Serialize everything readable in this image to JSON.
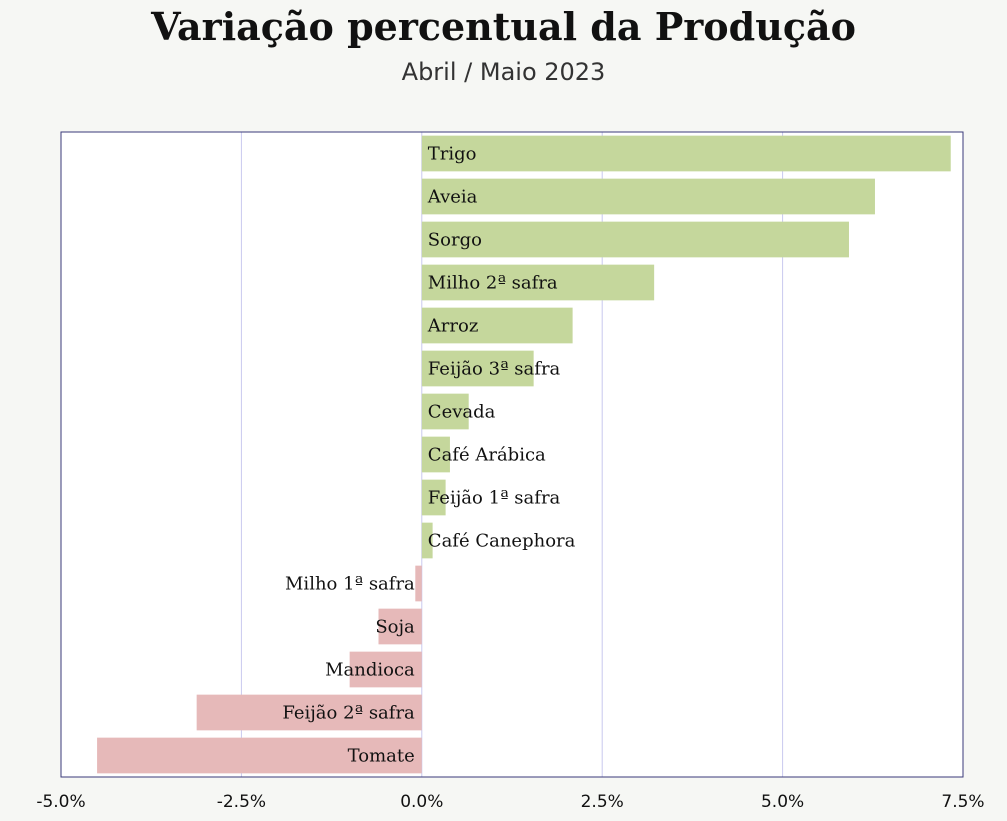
{
  "chart_data": {
    "type": "bar",
    "orientation": "horizontal",
    "title": "Variação percentual da Produção",
    "subtitle": "Abril / Maio 2023",
    "xlabel": "",
    "ylabel": "",
    "xlim": [
      -5.0,
      7.5
    ],
    "x_ticks": [
      "-5.0%",
      "-2.5%",
      "0.0%",
      "2.5%",
      "5.0%",
      "7.5%"
    ],
    "x_tick_values": [
      -5.0,
      -2.5,
      0.0,
      2.5,
      5.0,
      7.5
    ],
    "grid": "vertical",
    "categories": [
      "Trigo",
      "Aveia",
      "Sorgo",
      "Milho 2ª safra",
      "Arroz",
      "Feijão 3ª safra",
      "Cevada",
      "Café Arábica",
      "Feijão 1ª safra",
      "Café Canephora",
      "Milho 1ª safra",
      "Soja",
      "Mandioca",
      "Feijão 2ª safra",
      "Tomate"
    ],
    "values": [
      7.33,
      6.28,
      5.92,
      3.22,
      2.09,
      1.55,
      0.65,
      0.39,
      0.33,
      0.15,
      -0.09,
      -0.6,
      -1.0,
      -3.12,
      -4.5
    ],
    "colors": {
      "positive": "#c5d79c",
      "negative": "#e6b9b9",
      "grid": "#c9c9ee",
      "frame": "#3a3a7a"
    }
  }
}
